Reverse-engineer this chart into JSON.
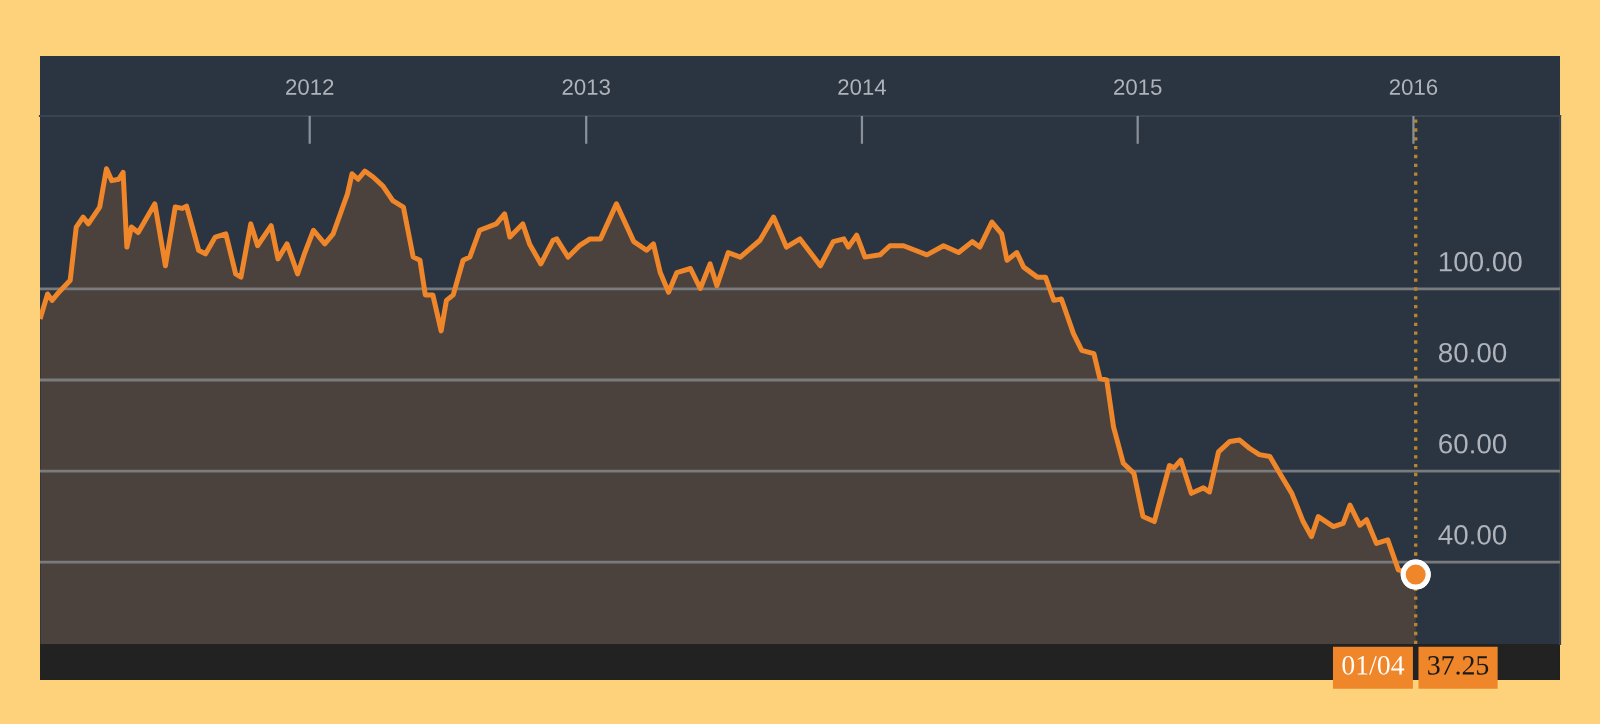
{
  "chart_data": {
    "type": "area",
    "x": [
      "2011-01-10",
      "2011-01-19",
      "2011-01-25",
      "2011-02-03",
      "2011-02-18",
      "2011-02-26",
      "2011-03-07",
      "2011-03-14",
      "2011-03-29",
      "2011-04-07",
      "2011-04-14",
      "2011-04-23",
      "2011-04-29",
      "2011-05-04",
      "2011-05-10",
      "2011-05-19",
      "2011-05-28",
      "2011-06-10",
      "2011-06-24",
      "2011-07-07",
      "2011-07-16",
      "2011-07-22",
      "2011-08-07",
      "2011-08-16",
      "2011-08-29",
      "2011-09-12",
      "2011-09-25",
      "2011-10-02",
      "2011-10-15",
      "2011-10-24",
      "2011-11-11",
      "2011-11-20",
      "2011-12-02",
      "2011-12-16",
      "2011-12-25",
      "2012-01-06",
      "2012-01-21",
      "2012-02-01",
      "2012-02-20",
      "2012-02-26",
      "2012-03-05",
      "2012-03-14",
      "2012-03-25",
      "2012-04-07",
      "2012-04-20",
      "2012-05-04",
      "2012-05-17",
      "2012-05-26",
      "2012-06-02",
      "2012-06-12",
      "2012-06-23",
      "2012-06-30",
      "2012-07-09",
      "2012-07-22",
      "2012-07-31",
      "2012-08-13",
      "2012-09-04",
      "2012-09-15",
      "2012-09-22",
      "2012-10-09",
      "2012-10-18",
      "2012-11-02",
      "2012-11-18",
      "2012-11-23",
      "2012-12-08",
      "2012-12-23",
      "2013-01-06",
      "2013-01-20",
      "2013-02-10",
      "2013-03-05",
      "2013-03-22",
      "2013-03-31",
      "2013-04-09",
      "2013-04-20",
      "2013-05-01",
      "2013-05-19",
      "2013-06-01",
      "2013-06-14",
      "2013-06-23",
      "2013-07-08",
      "2013-07-24",
      "2013-08-19",
      "2013-09-06",
      "2013-09-23",
      "2013-10-11",
      "2013-11-07",
      "2013-11-24",
      "2013-12-08",
      "2013-12-14",
      "2013-12-25",
      "2014-01-05",
      "2014-01-25",
      "2014-02-07",
      "2014-02-25",
      "2014-03-28",
      "2014-04-19",
      "2014-05-09",
      "2014-05-27",
      "2014-06-06",
      "2014-06-22",
      "2014-07-05",
      "2014-07-12",
      "2014-07-25",
      "2014-08-03",
      "2014-08-21",
      "2014-09-01",
      "2014-09-12",
      "2014-09-22",
      "2014-10-08",
      "2014-10-19",
      "2014-11-04",
      "2014-11-12",
      "2014-11-21",
      "2014-11-30",
      "2014-12-13",
      "2014-12-27",
      "2015-01-08",
      "2015-01-23",
      "2015-02-12",
      "2015-02-18",
      "2015-02-27",
      "2015-03-13",
      "2015-03-29",
      "2015-04-06",
      "2015-04-18",
      "2015-05-03",
      "2015-05-16",
      "2015-05-29",
      "2015-06-11",
      "2015-06-25",
      "2015-07-08",
      "2015-07-24",
      "2015-08-08",
      "2015-08-19",
      "2015-08-28",
      "2015-09-17",
      "2015-09-30",
      "2015-10-09",
      "2015-10-22",
      "2015-10-31",
      "2015-11-13",
      "2015-11-28",
      "2015-12-12",
      "2016-01-04"
    ],
    "series": [
      {
        "color": "#f0862a",
        "values": [
          93.9,
          98.9,
          97.5,
          99.3,
          101.9,
          113.6,
          115.8,
          114.3,
          118,
          126.4,
          123.8,
          124.1,
          125.6,
          109.2,
          113.6,
          112.4,
          115,
          118.7,
          105.1,
          118,
          117.7,
          118.2,
          108.5,
          107.7,
          111.4,
          112.1,
          103.3,
          102.6,
          114.3,
          109.5,
          113.9,
          106.6,
          109.9,
          103.3,
          107.7,
          112.9,
          109.9,
          112.1,
          120.9,
          125.3,
          124.1,
          125.9,
          124.6,
          122.6,
          119.4,
          118,
          107,
          106.3,
          98.7,
          98.7,
          90.8,
          97.5,
          98.7,
          106.3,
          107,
          112.9,
          114.3,
          116.5,
          111.4,
          114.3,
          109.9,
          105.5,
          110.7,
          111,
          107,
          109.5,
          111,
          111,
          118.7,
          110.4,
          108.5,
          109.9,
          103.6,
          99.3,
          103.6,
          104.5,
          100.1,
          105.5,
          100.7,
          108,
          107,
          110.7,
          115.8,
          109.2,
          111,
          105.1,
          110.4,
          111,
          109.2,
          111.8,
          107,
          107.5,
          109.5,
          109.5,
          107.5,
          109.5,
          108,
          110.4,
          109.2,
          114.7,
          112.1,
          106.3,
          108,
          104.8,
          102.6,
          102.6,
          97.5,
          97.8,
          90.2,
          86.5,
          85.8,
          80.3,
          80,
          69.7,
          61.7,
          59.5,
          50,
          48.9,
          61.2,
          60.7,
          62.4,
          55.1,
          56.3,
          55.4,
          64.2,
          66.5,
          66.8,
          65,
          63.6,
          63.2,
          59.5,
          55.1,
          48.9,
          45.6,
          50,
          47.8,
          48.5,
          52.5,
          48.1,
          49.3,
          44.1,
          44.9,
          38.3,
          37.25
        ]
      }
    ],
    "xlim": [
      "2011-01-09",
      "2016-07-13"
    ],
    "xticks": [
      {
        "value": "2012-01-01",
        "label": "2012"
      },
      {
        "value": "2013-01-01",
        "label": "2013"
      },
      {
        "value": "2014-01-01",
        "label": "2014"
      },
      {
        "value": "2015-01-01",
        "label": "2015"
      },
      {
        "value": "2016-01-01",
        "label": "2016"
      }
    ],
    "ylim": [
      22,
      138
    ],
    "yticks": [
      {
        "value": 40,
        "label": "40.00"
      },
      {
        "value": 60,
        "label": "60.00"
      },
      {
        "value": 80,
        "label": "80.00"
      },
      {
        "value": 100,
        "label": "100.00"
      }
    ],
    "grid": "y",
    "ref_lines": [
      {
        "axis": "x",
        "value": "2016-01-04",
        "color": "#b8862e",
        "line_style": "dotted"
      }
    ],
    "annotations": [
      {
        "text": "01/04",
        "x": "2016-01-04",
        "y": 37.25
      },
      {
        "text": "37.25",
        "x": "2016-01-04",
        "y": 37.25
      }
    ]
  }
}
